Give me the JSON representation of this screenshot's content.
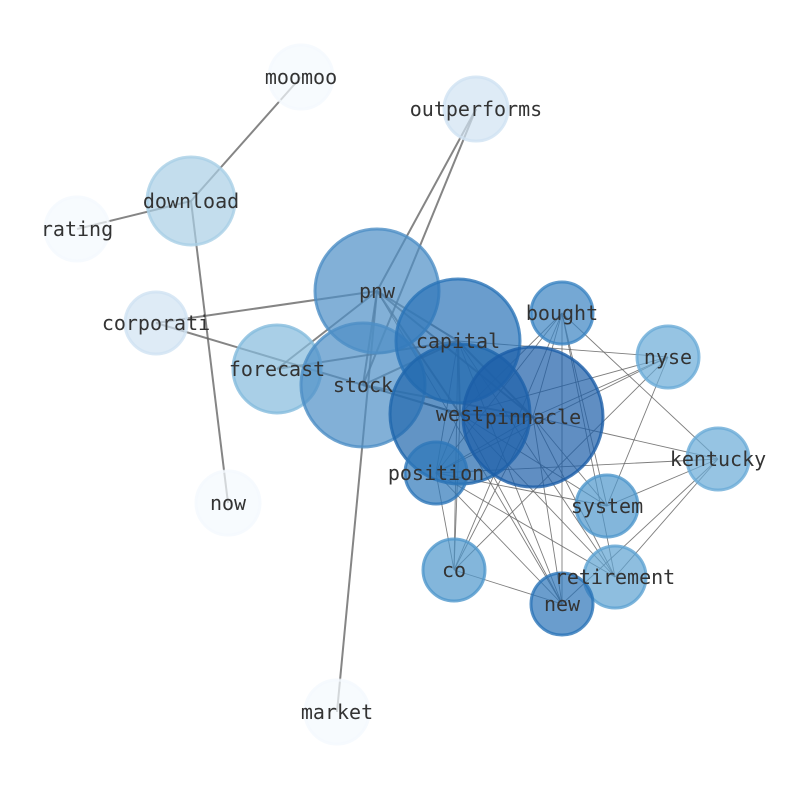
{
  "nodes": [
    {
      "id": "moomoo",
      "label": "moomoo",
      "color": "#f4f9fe"
    },
    {
      "id": "outperforms",
      "label": "outperforms",
      "color": "#d0e2f2"
    },
    {
      "id": "download",
      "label": "download",
      "color": "#a9cfe6"
    },
    {
      "id": "rating",
      "label": "rating",
      "color": "#f4f9fe"
    },
    {
      "id": "corporati",
      "label": "corporati",
      "color": "#d0e2f2"
    },
    {
      "id": "forecast",
      "label": "forecast",
      "color": "#84bbdd"
    },
    {
      "id": "pnw",
      "label": "pnw",
      "color": "#4d8fc6"
    },
    {
      "id": "stock",
      "label": "stock",
      "color": "#4d8fc6"
    },
    {
      "id": "capital",
      "label": "capital",
      "color": "#2b74b8"
    },
    {
      "id": "bought",
      "label": "bought",
      "color": "#3a83c2"
    },
    {
      "id": "nyse",
      "label": "nyse",
      "color": "#6aabd7"
    },
    {
      "id": "west",
      "label": "west",
      "color": "#1f66ad"
    },
    {
      "id": "pinnacle",
      "label": "pinnacle",
      "color": "#1c5ea8"
    },
    {
      "id": "position",
      "label": "position",
      "color": "#2e77b9"
    },
    {
      "id": "kentucky",
      "label": "kentucky",
      "color": "#6aabd7"
    },
    {
      "id": "system",
      "label": "system",
      "color": "#4f97cc"
    },
    {
      "id": "now",
      "label": "now",
      "color": "#f4f9fe"
    },
    {
      "id": "co",
      "label": "co",
      "color": "#4f97cc"
    },
    {
      "id": "retirement",
      "label": "retirement",
      "color": "#5ea2d2"
    },
    {
      "id": "new",
      "label": "new",
      "color": "#2b74b8"
    },
    {
      "id": "market",
      "label": "market",
      "color": "#f4f9fe"
    }
  ],
  "edges": [
    [
      "moomoo",
      "download",
      1
    ],
    [
      "download",
      "rating",
      1
    ],
    [
      "download",
      "now",
      1
    ],
    [
      "outperforms",
      "pnw",
      1
    ],
    [
      "outperforms",
      "stock",
      1
    ],
    [
      "forecast",
      "pnw",
      1
    ],
    [
      "pnw",
      "corporati",
      1
    ],
    [
      "corporati",
      "west",
      1
    ],
    [
      "pnw",
      "market",
      1
    ],
    [
      "pnw",
      "stock",
      1
    ],
    [
      "pnw",
      "capital",
      1
    ],
    [
      "pnw",
      "west",
      1
    ],
    [
      "pnw",
      "pinnacle",
      1
    ],
    [
      "forecast",
      "capital",
      1
    ],
    [
      "stock",
      "capital",
      1
    ],
    [
      "stock",
      "west",
      1
    ],
    [
      "stock",
      "pinnacle",
      1
    ],
    [
      "capital",
      "west",
      1
    ],
    [
      "capital",
      "pinnacle",
      1
    ],
    [
      "west",
      "pinnacle",
      1
    ],
    [
      "bought",
      "west",
      0
    ],
    [
      "bought",
      "pinnacle",
      0
    ],
    [
      "bought",
      "position",
      0
    ],
    [
      "bought",
      "co",
      0
    ],
    [
      "bought",
      "new",
      0
    ],
    [
      "bought",
      "system",
      0
    ],
    [
      "bought",
      "kentucky",
      0
    ],
    [
      "bought",
      "retirement",
      0
    ],
    [
      "nyse",
      "capital",
      0
    ],
    [
      "nyse",
      "pinnacle",
      0
    ],
    [
      "nyse",
      "west",
      0
    ],
    [
      "nyse",
      "position",
      0
    ],
    [
      "nyse",
      "co",
      0
    ],
    [
      "nyse",
      "system",
      0
    ],
    [
      "kentucky",
      "position",
      0
    ],
    [
      "kentucky",
      "pinnacle",
      0
    ],
    [
      "kentucky",
      "system",
      0
    ],
    [
      "kentucky",
      "new",
      0
    ],
    [
      "kentucky",
      "retirement",
      0
    ],
    [
      "system",
      "west",
      0
    ],
    [
      "system",
      "position",
      0
    ],
    [
      "system",
      "pinnacle",
      0
    ],
    [
      "co",
      "capital",
      0
    ],
    [
      "co",
      "west",
      0
    ],
    [
      "co",
      "position",
      0
    ],
    [
      "co",
      "new",
      0
    ],
    [
      "co",
      "pinnacle",
      0
    ],
    [
      "new",
      "capital",
      0
    ],
    [
      "new",
      "west",
      0
    ],
    [
      "new",
      "position",
      0
    ],
    [
      "new",
      "pinnacle",
      0
    ],
    [
      "new",
      "pnw",
      0
    ],
    [
      "retirement",
      "west",
      0
    ],
    [
      "retirement",
      "pinnacle",
      0
    ],
    [
      "retirement",
      "capital",
      0
    ],
    [
      "retirement",
      "position",
      0
    ],
    [
      "position",
      "capital",
      0
    ],
    [
      "position",
      "pinnacle",
      0
    ],
    [
      "position",
      "west",
      0
    ]
  ]
}
